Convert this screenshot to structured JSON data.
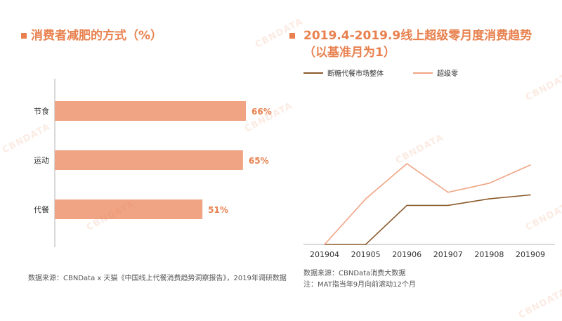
{
  "watermark": "CBNDATA",
  "left_panel": {
    "title": "消费者减肥的方式（%）",
    "source": "数据来源：CBNData x 天猫《中国线上代餐消费趋势洞察报告》，2019年调研数据"
  },
  "right_panel": {
    "title": "2019.4-2019.9线上超级零月度消费趋势",
    "subtitle": "（以基准月为1）",
    "source_line1": "数据来源：CBNData消费大数据",
    "source_line2": "注：MAT指当年9月向前滚动12个月"
  },
  "colors": {
    "accent": "#e8814f",
    "bar": "#f0a484",
    "series1": "#8b5a2b",
    "series2": "#f0a484",
    "axis": "#999999"
  },
  "chart_data": [
    {
      "type": "bar",
      "orientation": "horizontal",
      "title": "消费者减肥的方式（%）",
      "categories": [
        "节食",
        "运动",
        "代餐"
      ],
      "values": [
        66,
        65,
        51
      ],
      "value_labels": [
        "66%",
        "65%",
        "51%"
      ],
      "xlim": [
        0,
        100
      ]
    },
    {
      "type": "line",
      "title": "2019.4-2019.9线上超级零月度消费趋势",
      "x": [
        "201904",
        "201905",
        "201906",
        "201907",
        "201908",
        "201909"
      ],
      "ylim": [
        0,
        1.7
      ],
      "series": [
        {
          "name": "断糖代餐市场整体",
          "values": [
            1.0,
            1.0,
            1.3,
            1.3,
            1.35,
            1.38
          ]
        },
        {
          "name": "超级零",
          "values": [
            1.0,
            1.35,
            1.62,
            1.4,
            1.47,
            1.61
          ]
        }
      ]
    }
  ]
}
